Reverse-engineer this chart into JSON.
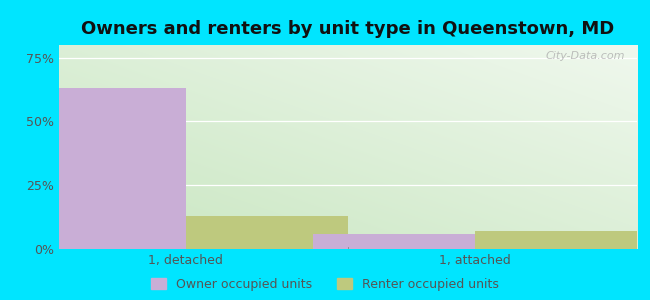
{
  "title": "Owners and renters by unit type in Queenstown, MD",
  "categories": [
    "1, detached",
    "1, attached"
  ],
  "owner_values": [
    0.63,
    0.06
  ],
  "renter_values": [
    0.13,
    0.07
  ],
  "owner_color": "#c9aed6",
  "renter_color": "#bec97e",
  "ylim": [
    0,
    0.8
  ],
  "yticks": [
    0.0,
    0.25,
    0.5,
    0.75
  ],
  "ytick_labels": [
    "0%",
    "25%",
    "50%",
    "75%"
  ],
  "legend_owner": "Owner occupied units",
  "legend_renter": "Renter occupied units",
  "bg_outer": "#00e5ff",
  "bg_inner_topleft": "#c8e6c0",
  "bg_inner_botright": "#f0f8ee",
  "watermark": "City-Data.com",
  "bar_width": 0.28,
  "title_fontsize": 13,
  "tick_fontsize": 9
}
